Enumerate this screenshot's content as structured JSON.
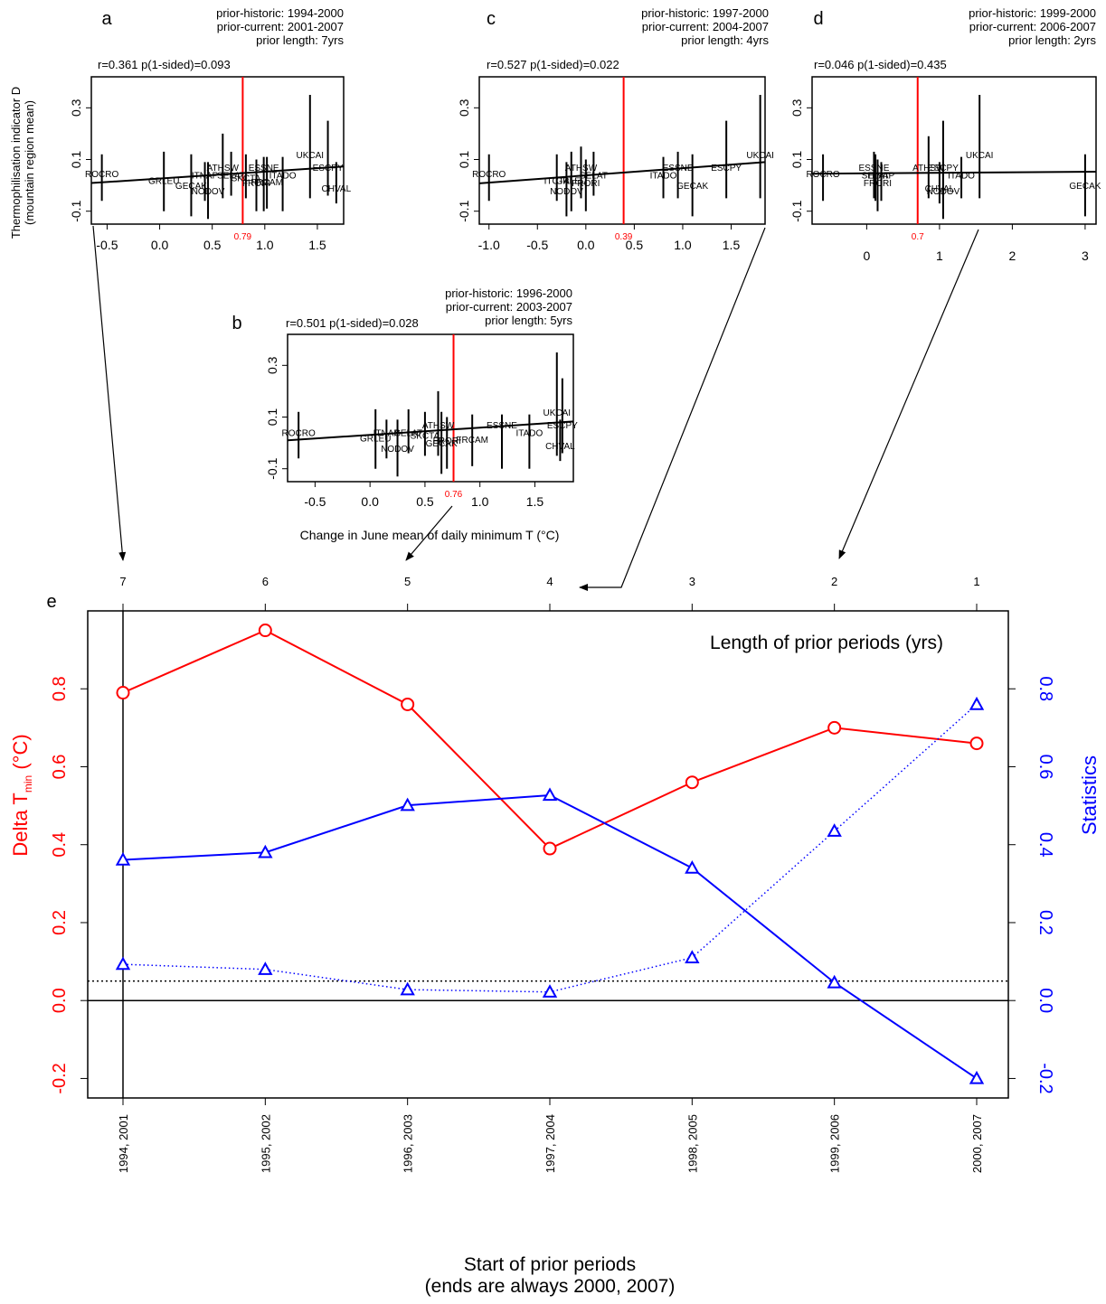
{
  "figure": {
    "common_ylabel_1": "Thermophilisation indicator D",
    "common_ylabel_2": "(mountain region mean)",
    "panel_b_xlabel": "Change in June mean of daily minimum T (°C)"
  },
  "chart_data": [
    {
      "panel": "a",
      "type": "scatter",
      "stat": "r=0.361 p(1-sided)=0.093",
      "prior_historic": "prior-historic: 1994-2000",
      "prior_current": "prior-current: 2001-2007",
      "prior_length": "prior length: 7yrs",
      "xlim": [
        -0.65,
        1.75
      ],
      "ylim": [
        -0.15,
        0.42
      ],
      "xticks": [
        -0.5,
        0.0,
        0.5,
        1.0,
        1.5
      ],
      "xtick_labels": [
        "-0.5",
        "0.0",
        "0.5",
        "1.0",
        "1.5"
      ],
      "yticks": [
        -0.1,
        0.1,
        0.3
      ],
      "ytick_labels": [
        "-0.1",
        "0.1",
        "0.3"
      ],
      "vline": 0.79,
      "vline_label": "0.79",
      "fit": [
        [
          -0.65,
          0.009
        ],
        [
          1.75,
          0.073
        ]
      ],
      "points": [
        {
          "label": "ROCRO",
          "x": -0.55,
          "y": 0.045,
          "lo": -0.06,
          "hi": 0.12
        },
        {
          "label": "GRLEU",
          "x": 0.04,
          "y": 0.02,
          "lo": -0.1,
          "hi": 0.13
        },
        {
          "label": "GECAK",
          "x": 0.3,
          "y": 0.0,
          "lo": -0.12,
          "hi": 0.12
        },
        {
          "label": "ITNAP",
          "x": 0.43,
          "y": 0.04,
          "lo": -0.06,
          "hi": 0.09
        },
        {
          "label": "NODOV",
          "x": 0.46,
          "y": -0.02,
          "lo": -0.13,
          "hi": 0.09
        },
        {
          "label": "ATHSW",
          "x": 0.6,
          "y": 0.07,
          "lo": -0.05,
          "hi": 0.2
        },
        {
          "label": "SELAT",
          "x": 0.68,
          "y": 0.04,
          "lo": -0.04,
          "hi": 0.13
        },
        {
          "label": "SKCTA",
          "x": 0.82,
          "y": 0.03,
          "lo": -0.05,
          "hi": 0.12
        },
        {
          "label": "FRORI",
          "x": 0.92,
          "y": 0.01,
          "lo": -0.1,
          "hi": 0.1
        },
        {
          "label": "ESSNE",
          "x": 0.99,
          "y": 0.07,
          "lo": -0.1,
          "hi": 0.11
        },
        {
          "label": "FRCAM",
          "x": 1.02,
          "y": 0.015,
          "lo": -0.09,
          "hi": 0.11
        },
        {
          "label": "ITADO",
          "x": 1.17,
          "y": 0.04,
          "lo": -0.1,
          "hi": 0.11
        },
        {
          "label": "UKCAI",
          "x": 1.43,
          "y": 0.12,
          "lo": -0.05,
          "hi": 0.35
        },
        {
          "label": "ESCPY",
          "x": 1.6,
          "y": 0.07,
          "lo": -0.04,
          "hi": 0.25
        },
        {
          "label": "CHVAL",
          "x": 1.68,
          "y": -0.01,
          "lo": -0.07,
          "hi": 0.09
        }
      ]
    },
    {
      "panel": "b",
      "type": "scatter",
      "stat": "r=0.501 p(1-sided)=0.028",
      "prior_historic": "prior-historic: 1996-2000",
      "prior_current": "prior-current: 2003-2007",
      "prior_length": "prior length: 5yrs",
      "xlim": [
        -0.75,
        1.85
      ],
      "ylim": [
        -0.15,
        0.42
      ],
      "xticks": [
        -0.5,
        0.0,
        0.5,
        1.0,
        1.5
      ],
      "xtick_labels": [
        "-0.5",
        "0.0",
        "0.5",
        "1.0",
        "1.5"
      ],
      "yticks": [
        -0.1,
        0.1,
        0.3
      ],
      "ytick_labels": [
        "-0.1",
        "0.1",
        "0.3"
      ],
      "vline": 0.76,
      "vline_label": "0.76",
      "fit": [
        [
          -0.75,
          0.01
        ],
        [
          1.85,
          0.083
        ]
      ],
      "points": [
        {
          "label": "ROCRO",
          "x": -0.65,
          "y": 0.04,
          "lo": -0.06,
          "hi": 0.12
        },
        {
          "label": "GRLEU",
          "x": 0.05,
          "y": 0.02,
          "lo": -0.1,
          "hi": 0.13
        },
        {
          "label": "NODOV",
          "x": 0.25,
          "y": -0.02,
          "lo": -0.13,
          "hi": 0.09
        },
        {
          "label": "ITNAP",
          "x": 0.15,
          "y": 0.04,
          "lo": -0.06,
          "hi": 0.09
        },
        {
          "label": "SELAT",
          "x": 0.35,
          "y": 0.04,
          "lo": -0.04,
          "hi": 0.13
        },
        {
          "label": "SKCTA",
          "x": 0.5,
          "y": 0.03,
          "lo": -0.05,
          "hi": 0.12
        },
        {
          "label": "ATHSW",
          "x": 0.62,
          "y": 0.07,
          "lo": -0.05,
          "hi": 0.2
        },
        {
          "label": "GECAK",
          "x": 0.65,
          "y": 0.0,
          "lo": -0.12,
          "hi": 0.12
        },
        {
          "label": "FRORI",
          "x": 0.7,
          "y": 0.01,
          "lo": -0.1,
          "hi": 0.1
        },
        {
          "label": "FRCAM",
          "x": 0.93,
          "y": 0.015,
          "lo": -0.09,
          "hi": 0.11
        },
        {
          "label": "ESSNE",
          "x": 1.2,
          "y": 0.07,
          "lo": -0.1,
          "hi": 0.11
        },
        {
          "label": "ITADO",
          "x": 1.45,
          "y": 0.04,
          "lo": -0.1,
          "hi": 0.11
        },
        {
          "label": "UKCAI",
          "x": 1.7,
          "y": 0.12,
          "lo": -0.05,
          "hi": 0.35
        },
        {
          "label": "ESCPY",
          "x": 1.75,
          "y": 0.07,
          "lo": -0.04,
          "hi": 0.25
        },
        {
          "label": "CHVAL",
          "x": 1.73,
          "y": -0.01,
          "lo": -0.07,
          "hi": 0.09
        }
      ]
    },
    {
      "panel": "c",
      "type": "scatter",
      "stat": "r=0.527 p(1-sided)=0.022",
      "prior_historic": "prior-historic: 1997-2000",
      "prior_current": "prior-current: 2004-2007",
      "prior_length": "prior length: 4yrs",
      "xlim": [
        -1.1,
        1.85
      ],
      "ylim": [
        -0.15,
        0.42
      ],
      "xticks": [
        -1.0,
        -0.5,
        0.0,
        0.5,
        1.0,
        1.5
      ],
      "xtick_labels": [
        "-1.0",
        "-0.5",
        "0.0",
        "0.5",
        "1.0",
        "1.5"
      ],
      "yticks": [
        -0.1,
        0.1,
        0.3
      ],
      "ytick_labels": [
        "-0.1",
        "0.1",
        "0.3"
      ],
      "vline": 0.39,
      "vline_label": "0.39",
      "fit": [
        [
          -1.1,
          0.008
        ],
        [
          1.85,
          0.09
        ]
      ],
      "points": [
        {
          "label": "ROCRO",
          "x": -1.0,
          "y": 0.045,
          "lo": -0.06,
          "hi": 0.12
        },
        {
          "label": "ITCTA",
          "x": -0.3,
          "y": 0.02,
          "lo": -0.06,
          "hi": 0.12
        },
        {
          "label": "NODOV",
          "x": -0.2,
          "y": -0.02,
          "lo": -0.12,
          "hi": 0.09
        },
        {
          "label": "GRLEU",
          "x": -0.15,
          "y": 0.02,
          "lo": -0.1,
          "hi": 0.13
        },
        {
          "label": "ATHSW",
          "x": -0.05,
          "y": 0.07,
          "lo": -0.05,
          "hi": 0.15
        },
        {
          "label": "SELAT",
          "x": 0.08,
          "y": 0.04,
          "lo": -0.04,
          "hi": 0.13
        },
        {
          "label": "FRORI",
          "x": 0.0,
          "y": 0.01,
          "lo": -0.1,
          "hi": 0.1
        },
        {
          "label": "ITADO",
          "x": 0.8,
          "y": 0.04,
          "lo": -0.05,
          "hi": 0.11
        },
        {
          "label": "ESSNE",
          "x": 0.95,
          "y": 0.07,
          "lo": -0.05,
          "hi": 0.13
        },
        {
          "label": "GECAK",
          "x": 1.1,
          "y": 0.0,
          "lo": -0.12,
          "hi": 0.12
        },
        {
          "label": "ESCPY",
          "x": 1.45,
          "y": 0.07,
          "lo": -0.05,
          "hi": 0.25
        },
        {
          "label": "UKCAI",
          "x": 1.8,
          "y": 0.12,
          "lo": -0.05,
          "hi": 0.35
        }
      ]
    },
    {
      "panel": "d",
      "type": "scatter",
      "stat": "r=0.046 p(1-sided)=0.435",
      "prior_historic": "prior-historic: 1999-2000",
      "prior_current": "prior-current: 2006-2007",
      "prior_length": "prior length: 2yrs",
      "xlim": [
        -0.75,
        3.15
      ],
      "ylim": [
        -0.15,
        0.42
      ],
      "xticks": [
        0,
        1,
        2,
        3
      ],
      "xtick_labels": [
        "0",
        "1",
        "2",
        "3"
      ],
      "yticks": [
        -0.1,
        0.1,
        0.3
      ],
      "ytick_labels": [
        "-0.1",
        "0.1",
        "0.3"
      ],
      "vline": 0.7,
      "vline_label": "0.7",
      "fit": [
        [
          -0.75,
          0.045
        ],
        [
          3.15,
          0.053
        ]
      ],
      "points": [
        {
          "label": "ROCRO",
          "x": -0.6,
          "y": 0.045,
          "lo": -0.06,
          "hi": 0.12
        },
        {
          "label": "ESSNE",
          "x": 0.1,
          "y": 0.07,
          "lo": -0.05,
          "hi": 0.13
        },
        {
          "label": "SELAT",
          "x": 0.12,
          "y": 0.04,
          "lo": -0.06,
          "hi": 0.12
        },
        {
          "label": "ITNAP",
          "x": 0.2,
          "y": 0.04,
          "lo": -0.06,
          "hi": 0.09
        },
        {
          "label": "FRORI",
          "x": 0.15,
          "y": 0.01,
          "lo": -0.1,
          "hi": 0.1
        },
        {
          "label": "ATHSW",
          "x": 0.85,
          "y": 0.07,
          "lo": -0.05,
          "hi": 0.19
        },
        {
          "label": "ESCPY",
          "x": 1.05,
          "y": 0.07,
          "lo": -0.04,
          "hi": 0.25
        },
        {
          "label": "CHVAL",
          "x": 1.0,
          "y": -0.01,
          "lo": -0.07,
          "hi": 0.09
        },
        {
          "label": "NODOV",
          "x": 1.05,
          "y": -0.02,
          "lo": -0.13,
          "hi": 0.09
        },
        {
          "label": "ITADO",
          "x": 1.3,
          "y": 0.04,
          "lo": -0.05,
          "hi": 0.11
        },
        {
          "label": "UKCAI",
          "x": 1.55,
          "y": 0.12,
          "lo": -0.05,
          "hi": 0.35
        },
        {
          "label": "GECAK",
          "x": 3.0,
          "y": 0.0,
          "lo": -0.12,
          "hi": 0.12
        }
      ]
    },
    {
      "panel": "e",
      "type": "line",
      "xlabel_1": "Start of prior periods",
      "xlabel_2": "(ends are always 2000, 2007)",
      "ylabel_left_main": "Delta T",
      "ylabel_left_sub": "min",
      "ylabel_left_unit": " (°C)",
      "ylabel_right": "Statistics",
      "top_axis_title": "Length of prior periods (yrs)",
      "categories": [
        "1994, 2001",
        "1995, 2002",
        "1996, 2003",
        "1997, 2004",
        "1998, 2005",
        "1999, 2006",
        "2000, 2007"
      ],
      "top_ticks": [
        "7",
        "6",
        "5",
        "4",
        "3",
        "2",
        "1"
      ],
      "ylim": [
        -0.25,
        1.0
      ],
      "yticks": [
        -0.2,
        0.0,
        0.2,
        0.4,
        0.6,
        0.8
      ],
      "ytick_labels": [
        "-0.2",
        "0.0",
        "0.2",
        "0.4",
        "0.6",
        "0.8"
      ],
      "ref_lines": [
        0.0,
        0.05
      ],
      "series": [
        {
          "values": [
            0.79,
            0.95,
            0.76,
            0.39,
            0.56,
            0.7,
            0.66
          ],
          "color": "#ff0000",
          "marker": "circle",
          "dash": "solid"
        },
        {
          "values": [
            0.361,
            0.38,
            0.501,
            0.527,
            0.34,
            0.046,
            -0.2
          ],
          "color": "#0000ff",
          "marker": "triangle",
          "dash": "solid"
        },
        {
          "values": [
            0.093,
            0.08,
            0.028,
            0.022,
            0.11,
            0.435,
            0.76
          ],
          "color": "#0000ff",
          "marker": "triangle",
          "dash": "dotted"
        }
      ]
    }
  ],
  "colors": {
    "red": "#ff0000",
    "blue": "#0000ff",
    "black": "#000000"
  }
}
